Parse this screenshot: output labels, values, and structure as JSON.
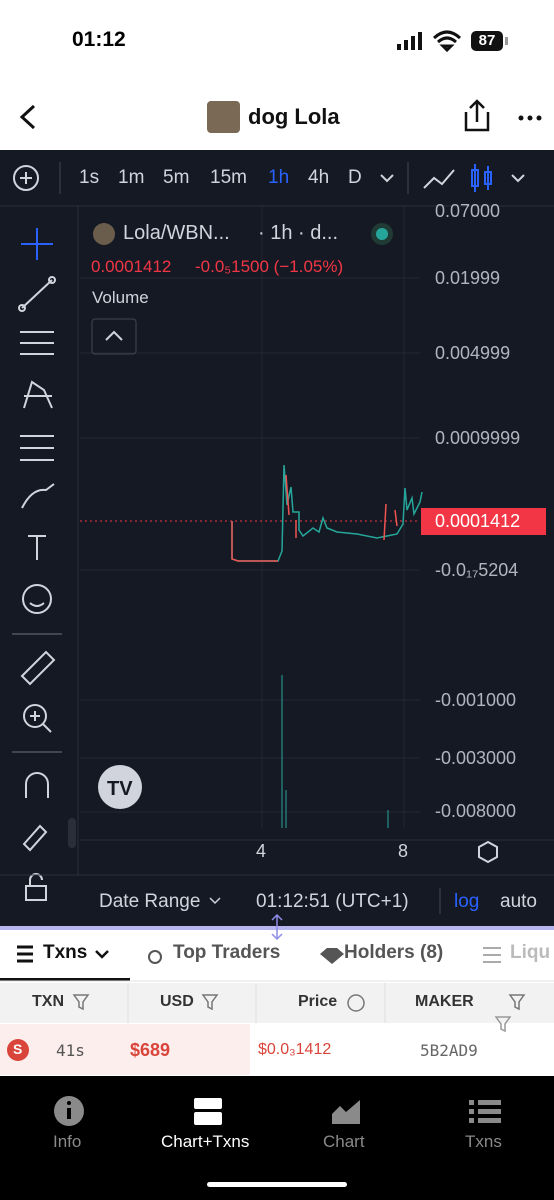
{
  "status_bar": {
    "time": "01:12",
    "battery": "87"
  },
  "header": {
    "title": "dog Lola"
  },
  "toolbar": {
    "intervals": [
      "1s",
      "1m",
      "5m",
      "15m",
      "1h",
      "4h",
      "D"
    ]
  },
  "chart": {
    "symbol": "Lola/WBN...",
    "interval": "· 1h · d...",
    "last_price": "0.0001412",
    "change": "-0.0₅1500 (−1.05%)",
    "volume_label": "Volume",
    "price_axis": [
      "0.07000",
      "0.01999",
      "0.004999",
      "0.0009999",
      "-0.0₁₇5204",
      "-0.001000",
      "-0.003000",
      "-0.008000"
    ],
    "time_axis": [
      "4",
      "8"
    ]
  },
  "chart_footer": {
    "date_range": "Date Range",
    "clock": "01:12:51 (UTC+1)",
    "log": "log",
    "auto": "auto"
  },
  "tabs": [
    "Txns",
    "Top Traders",
    "Holders (8)",
    "Liqu"
  ],
  "table": {
    "headers": [
      "TXN",
      "USD",
      "Price",
      "MAKER"
    ],
    "rows": [
      [
        "S",
        "41s",
        "$689",
        "$0.0₃1412",
        "5B2AD9"
      ]
    ]
  },
  "bottom_nav": [
    "Info",
    "Chart+Txns",
    "Chart",
    "Txns"
  ]
}
